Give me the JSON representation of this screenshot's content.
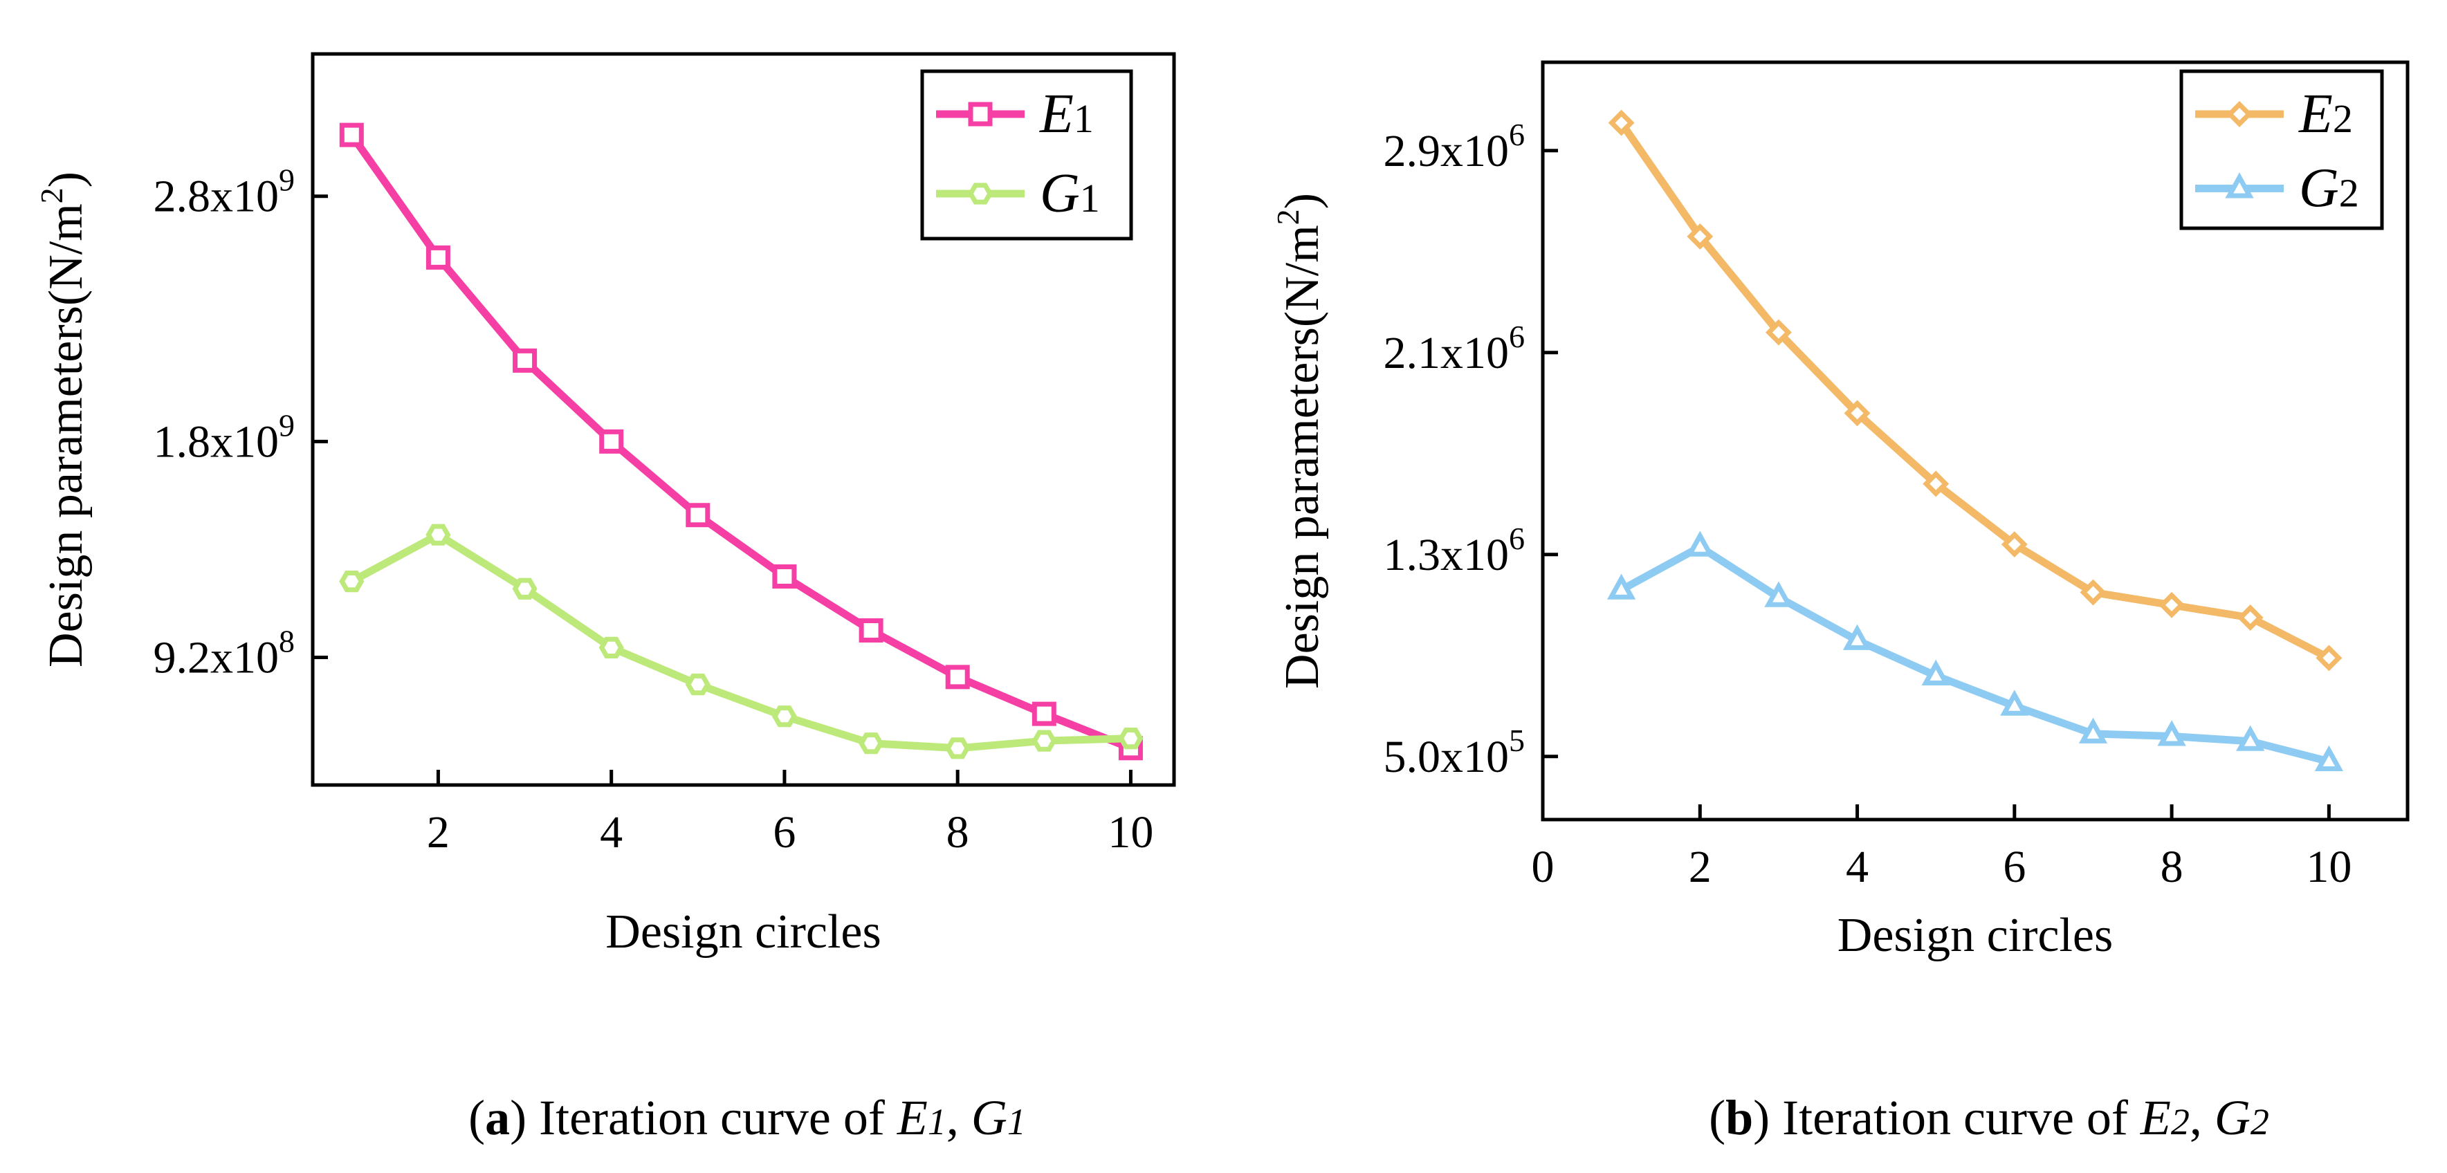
{
  "chart_data": [
    {
      "type": "line",
      "x": [
        1,
        2,
        3,
        4,
        5,
        6,
        7,
        8,
        9,
        10
      ],
      "xlabel": "Design circles",
      "ylabel": "Design parameters(N/m2)",
      "xticks": [
        "2",
        "4",
        "6",
        "8",
        "10"
      ],
      "xtick_values": [
        2,
        4,
        6,
        8,
        10
      ],
      "yticks": [
        {
          "value": 920000000,
          "mantissa": "9.2x10",
          "exp": "8"
        },
        {
          "value": 1800000000,
          "mantissa": "1.8x10",
          "exp": "9"
        },
        {
          "value": 2800000000,
          "mantissa": "2.8x10",
          "exp": "9"
        }
      ],
      "xlim": [
        0.55,
        10.5
      ],
      "ylim": [
        400000000,
        3380000000
      ],
      "grid": false,
      "legend": "top-right",
      "caption": {
        "letter": "a",
        "text": " Iteration curve of ",
        "v1": "E",
        "s1": "1",
        "sep": ", ",
        "v2": "G",
        "s2": "1"
      },
      "series": [
        {
          "name": "E1",
          "legend_main": "E",
          "legend_sub": "1",
          "color": "#f53fa4",
          "marker": "square",
          "values": [
            3050000000,
            2550000000,
            2130000000,
            1800000000,
            1500000000,
            1250000000,
            1030000000,
            840000000,
            690000000,
            550000000
          ]
        },
        {
          "name": "G1",
          "legend_main": "G",
          "legend_sub": "1",
          "color": "#bde97a",
          "marker": "hexagon",
          "values": [
            1230000000,
            1420000000,
            1200000000,
            960000000,
            810000000,
            680000000,
            570000000,
            550000000,
            580000000,
            590000000
          ]
        }
      ]
    },
    {
      "type": "line",
      "x": [
        1,
        2,
        3,
        4,
        5,
        6,
        7,
        8,
        9,
        10
      ],
      "xlabel": "Design circles",
      "ylabel": "Design parameters(N/m2)",
      "xticks": [
        "0",
        "2",
        "4",
        "6",
        "8",
        "10"
      ],
      "xtick_values": [
        0,
        2,
        4,
        6,
        8,
        10
      ],
      "yticks": [
        {
          "value": 500000,
          "mantissa": "5.0x10",
          "exp": "5"
        },
        {
          "value": 1300000,
          "mantissa": "1.3x10",
          "exp": "6"
        },
        {
          "value": 2100000,
          "mantissa": "2.1x10",
          "exp": "6"
        },
        {
          "value": 2900000,
          "mantissa": "2.9x10",
          "exp": "6"
        }
      ],
      "xlim": [
        0,
        11
      ],
      "ylim": [
        250000,
        3250000
      ],
      "grid": false,
      "legend": "top-right",
      "caption": {
        "letter": "b",
        "text": " Iteration curve of ",
        "v1": "E",
        "s1": "2",
        "sep": ", ",
        "v2": "G",
        "s2": "2"
      },
      "series": [
        {
          "name": "E2",
          "legend_main": "E",
          "legend_sub": "2",
          "color": "#f3b966",
          "marker": "diamond",
          "values": [
            3010000,
            2560000,
            2180000,
            1860000,
            1580000,
            1340000,
            1150000,
            1100000,
            1050000,
            890000
          ]
        },
        {
          "name": "G2",
          "legend_main": "G",
          "legend_sub": "2",
          "color": "#8ecbf2",
          "marker": "triangle",
          "values": [
            1160000,
            1330000,
            1130000,
            960000,
            820000,
            700000,
            590000,
            580000,
            560000,
            480000
          ]
        }
      ]
    }
  ]
}
